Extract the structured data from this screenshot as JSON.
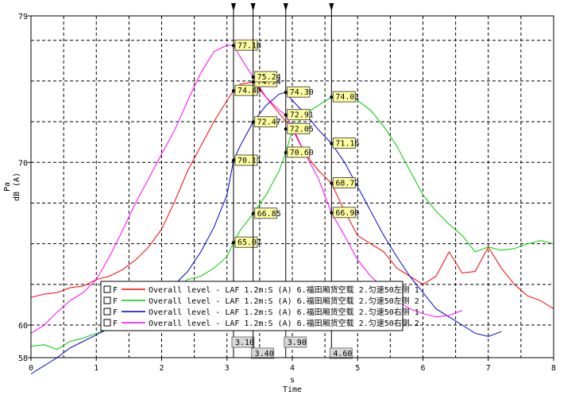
{
  "chart_data": {
    "type": "line",
    "xlabel_unit": "s",
    "xlabel": "Time",
    "ylabel_unit": "Pa",
    "ylabel": "dB (A)",
    "xlim": [
      0,
      8
    ],
    "ylim": [
      58,
      79
    ],
    "xticks": [
      0,
      1,
      2,
      3,
      4,
      5,
      6,
      7,
      8
    ],
    "yticks": [
      58,
      60,
      70,
      79
    ],
    "grid": true,
    "legend_position": "bottom-center",
    "series": [
      {
        "name": "Overall level - LAF 1.2m:S (A) 6.福田厢货空载 2.匀速50左侧 1",
        "checkbox": "F",
        "color": "#ff0000",
        "x": [
          0,
          0.2,
          0.4,
          0.6,
          0.8,
          1.0,
          1.2,
          1.4,
          1.6,
          1.8,
          2.0,
          2.2,
          2.4,
          2.6,
          2.8,
          3.0,
          3.1,
          3.2,
          3.4,
          3.6,
          3.8,
          4.0,
          4.2,
          4.4,
          4.6,
          4.8,
          5.0,
          5.2,
          5.4,
          5.6,
          5.8,
          6.0,
          6.2,
          6.4,
          6.6,
          6.8,
          7.0,
          7.2,
          7.4,
          7.6,
          7.8,
          8.0
        ],
        "y": [
          61.7,
          61.9,
          62.0,
          62.3,
          62.4,
          62.8,
          63.0,
          63.4,
          64.0,
          64.8,
          65.9,
          67.6,
          69.5,
          71.0,
          72.5,
          73.8,
          74.4,
          74.8,
          74.94,
          74.0,
          73.0,
          72.05,
          70.5,
          69.5,
          68.72,
          67.0,
          65.5,
          65.0,
          64.5,
          63.5,
          63.0,
          62.5,
          63.0,
          64.5,
          63.2,
          63.3,
          64.8,
          63.5,
          62.5,
          61.8,
          61.5,
          61.0
        ]
      },
      {
        "name": "Overall level - LAF 1.2m:S (A) 6.福田厢货空载 2.匀速50左侧 2",
        "checkbox": "F",
        "color": "#00cc00",
        "x": [
          0,
          0.2,
          0.4,
          0.6,
          0.8,
          1.0,
          1.2,
          1.4,
          1.6,
          1.8,
          2.0,
          2.2,
          2.4,
          2.6,
          2.8,
          3.0,
          3.1,
          3.2,
          3.4,
          3.6,
          3.8,
          3.9,
          4.0,
          4.2,
          4.4,
          4.6,
          4.8,
          5.0,
          5.2,
          5.4,
          5.6,
          5.8,
          6.0,
          6.2,
          6.4,
          6.6,
          6.8,
          7.0,
          7.2,
          7.4,
          7.6,
          7.8,
          8.0
        ],
        "y": [
          58.7,
          58.8,
          58.5,
          59.0,
          59.2,
          59.5,
          59.8,
          60.2,
          60.7,
          61.3,
          61.8,
          62.3,
          62.8,
          63.0,
          63.5,
          64.2,
          65.07,
          65.8,
          66.85,
          68.0,
          69.5,
          70.6,
          72.0,
          73.0,
          73.5,
          74.01,
          74.2,
          73.8,
          73.2,
          72.2,
          71.0,
          69.5,
          68.0,
          67.0,
          66.2,
          65.5,
          64.5,
          64.8,
          64.6,
          64.7,
          65.0,
          65.2,
          65.0
        ]
      },
      {
        "name": "Overall level - LAF 1.2m:S (A) 6.福田厢货空载 2.匀速50右侧 1",
        "checkbox": "F",
        "color": "#0000cc",
        "x": [
          0,
          0.2,
          0.4,
          0.6,
          0.8,
          1.0,
          1.2,
          1.4,
          1.6,
          1.8,
          2.0,
          2.2,
          2.4,
          2.6,
          2.8,
          3.0,
          3.1,
          3.2,
          3.4,
          3.6,
          3.8,
          3.9,
          4.0,
          4.2,
          4.4,
          4.6,
          4.8,
          5.0,
          5.2,
          5.4,
          5.6,
          5.8,
          6.0,
          6.2,
          6.4,
          6.6,
          6.8,
          7.0,
          7.2
        ],
        "y": [
          57.0,
          57.5,
          58.0,
          58.6,
          59.0,
          59.4,
          59.8,
          60.3,
          60.8,
          61.3,
          61.7,
          62.5,
          63.3,
          64.5,
          66.0,
          68.0,
          70.11,
          71.0,
          72.47,
          73.5,
          74.2,
          74.3,
          73.8,
          73.0,
          72.0,
          71.16,
          70.0,
          68.5,
          67.0,
          65.5,
          64.2,
          63.0,
          62.0,
          61.0,
          60.5,
          60.0,
          59.5,
          59.3,
          59.6
        ]
      },
      {
        "name": "Overall level - LAF 1.2m:S (A) 6.福田厢货空载 2.匀速50右侧 2",
        "checkbox": "F",
        "color": "#ff00ff",
        "x": [
          0,
          0.2,
          0.4,
          0.6,
          0.8,
          1.0,
          1.2,
          1.4,
          1.6,
          1.8,
          2.0,
          2.2,
          2.4,
          2.6,
          2.8,
          3.0,
          3.1,
          3.2,
          3.4,
          3.6,
          3.8,
          3.9,
          4.0,
          4.2,
          4.4,
          4.6,
          4.8,
          5.0,
          5.2,
          5.4,
          5.6,
          5.8,
          6.0,
          6.2,
          6.4,
          6.6
        ],
        "y": [
          59.5,
          60.0,
          60.8,
          61.5,
          62.0,
          62.8,
          64.2,
          65.8,
          67.5,
          69.0,
          70.5,
          72.0,
          73.8,
          75.5,
          76.8,
          77.2,
          77.18,
          76.5,
          75.24,
          74.0,
          73.2,
          72.91,
          72.2,
          70.5,
          69.0,
          66.9,
          65.5,
          64.0,
          63.0,
          62.3,
          61.5,
          61.0,
          60.7,
          60.5,
          60.6,
          60.9
        ]
      }
    ],
    "cursors": [
      {
        "x_label": "3.10",
        "x": 3.1,
        "values": [
          {
            "series": 0,
            "value": 74.4
          },
          {
            "series": 1,
            "value": 65.07
          },
          {
            "series": 2,
            "value": 70.11
          },
          {
            "series": 3,
            "value": 77.18
          }
        ]
      },
      {
        "x_label": "3.40",
        "x": 3.4,
        "values": [
          {
            "series": 0,
            "value": 74.94
          },
          {
            "series": 1,
            "value": 66.85
          },
          {
            "series": 2,
            "value": 72.47
          },
          {
            "series": 3,
            "value": 75.24
          }
        ]
      },
      {
        "x_label": "3.90",
        "x": 3.9,
        "values": [
          {
            "series": 0,
            "value": 72.05
          },
          {
            "series": 1,
            "value": 70.6
          },
          {
            "series": 2,
            "value": 74.3
          },
          {
            "series": 3,
            "value": 72.91
          }
        ]
      },
      {
        "x_label": "4.60",
        "x": 4.6,
        "values": [
          {
            "series": 0,
            "value": 68.72
          },
          {
            "series": 1,
            "value": 74.01
          },
          {
            "series": 2,
            "value": 71.16
          },
          {
            "series": 3,
            "value": 66.9
          }
        ]
      }
    ],
    "colors": {
      "background": "#ffffff",
      "grid": "#000000",
      "cursor": "#000000",
      "label_box": "#ffffa0",
      "x_label_box": "#d8d8d8"
    }
  }
}
